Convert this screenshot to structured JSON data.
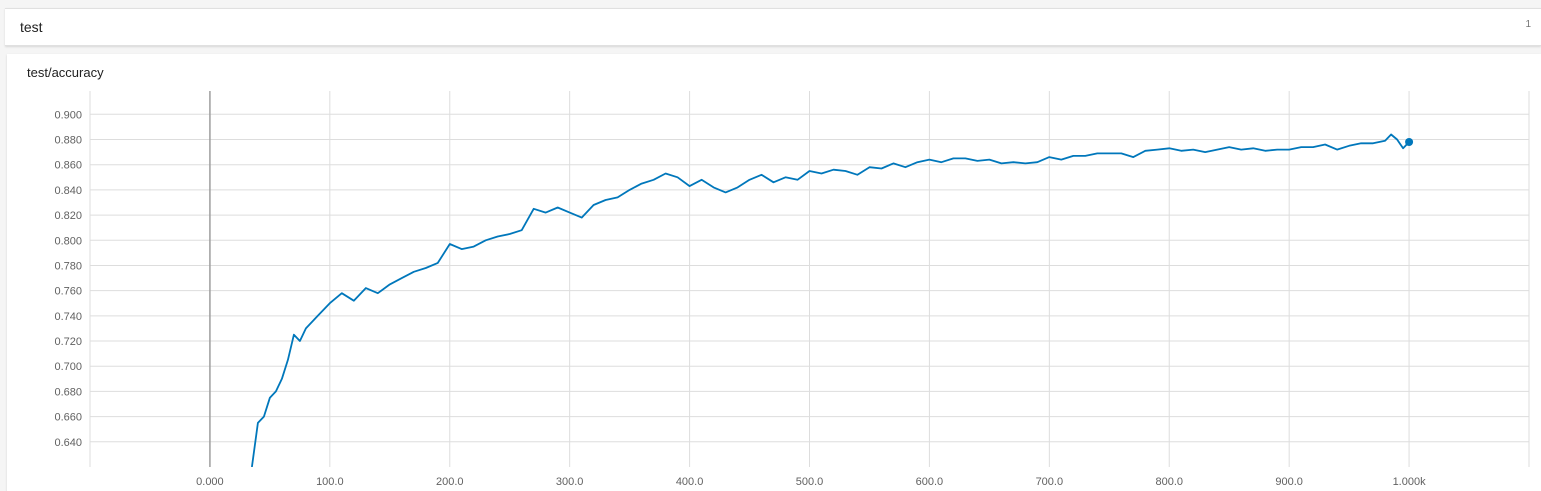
{
  "header": {
    "title": "test",
    "count": "1"
  },
  "card": {
    "title": "test/accuracy"
  },
  "colors": {
    "series": "#0077bb",
    "grid": "#dddddd",
    "zero_axis": "#9e9e9e"
  },
  "chart_data": {
    "type": "line",
    "title": "test/accuracy",
    "xlabel": "",
    "ylabel": "",
    "xlim": [
      -100,
      1100
    ],
    "ylim": [
      0.62,
      0.9185
    ],
    "x_ticks": [
      0,
      100,
      200,
      300,
      400,
      500,
      600,
      700,
      800,
      900,
      1000
    ],
    "x_tick_labels": [
      "0.000",
      "100.0",
      "200.0",
      "300.0",
      "400.0",
      "500.0",
      "600.0",
      "700.0",
      "800.0",
      "900.0",
      "1.000k"
    ],
    "y_ticks": [
      0.64,
      0.66,
      0.68,
      0.7,
      0.72,
      0.74,
      0.76,
      0.78,
      0.8,
      0.82,
      0.84,
      0.86,
      0.88,
      0.9
    ],
    "y_tick_labels": [
      "0.640",
      "0.660",
      "0.680",
      "0.700",
      "0.720",
      "0.740",
      "0.760",
      "0.780",
      "0.800",
      "0.820",
      "0.840",
      "0.860",
      "0.880",
      "0.900"
    ],
    "grid": true,
    "series": [
      {
        "marker_last": true,
        "x": [
          35,
          40,
          45,
          50,
          55,
          60,
          65,
          70,
          75,
          80,
          90,
          100,
          110,
          120,
          130,
          140,
          150,
          160,
          170,
          180,
          190,
          200,
          210,
          220,
          230,
          240,
          250,
          260,
          270,
          280,
          290,
          300,
          310,
          320,
          330,
          340,
          350,
          360,
          370,
          380,
          390,
          400,
          410,
          420,
          430,
          440,
          450,
          460,
          470,
          480,
          490,
          500,
          510,
          520,
          530,
          540,
          550,
          560,
          570,
          580,
          590,
          600,
          610,
          620,
          630,
          640,
          650,
          660,
          670,
          680,
          690,
          700,
          710,
          720,
          730,
          740,
          750,
          760,
          770,
          780,
          790,
          800,
          810,
          820,
          830,
          840,
          850,
          860,
          870,
          880,
          890,
          900,
          910,
          920,
          930,
          940,
          950,
          960,
          970,
          980,
          985,
          990,
          995,
          1000
        ],
        "y": [
          0.62,
          0.655,
          0.66,
          0.675,
          0.68,
          0.69,
          0.705,
          0.725,
          0.72,
          0.73,
          0.74,
          0.75,
          0.758,
          0.752,
          0.762,
          0.758,
          0.765,
          0.77,
          0.775,
          0.778,
          0.782,
          0.797,
          0.793,
          0.795,
          0.8,
          0.803,
          0.805,
          0.808,
          0.825,
          0.822,
          0.826,
          0.822,
          0.818,
          0.828,
          0.832,
          0.834,
          0.84,
          0.845,
          0.848,
          0.853,
          0.85,
          0.843,
          0.848,
          0.842,
          0.838,
          0.842,
          0.848,
          0.852,
          0.846,
          0.85,
          0.848,
          0.855,
          0.853,
          0.856,
          0.855,
          0.852,
          0.858,
          0.857,
          0.861,
          0.858,
          0.862,
          0.864,
          0.862,
          0.865,
          0.865,
          0.863,
          0.864,
          0.861,
          0.862,
          0.861,
          0.862,
          0.866,
          0.864,
          0.867,
          0.867,
          0.869,
          0.869,
          0.869,
          0.866,
          0.871,
          0.872,
          0.873,
          0.871,
          0.872,
          0.87,
          0.872,
          0.874,
          0.872,
          0.873,
          0.871,
          0.872,
          0.872,
          0.874,
          0.874,
          0.876,
          0.872,
          0.875,
          0.877,
          0.877,
          0.879,
          0.884,
          0.88,
          0.873,
          0.878
        ]
      }
    ]
  }
}
